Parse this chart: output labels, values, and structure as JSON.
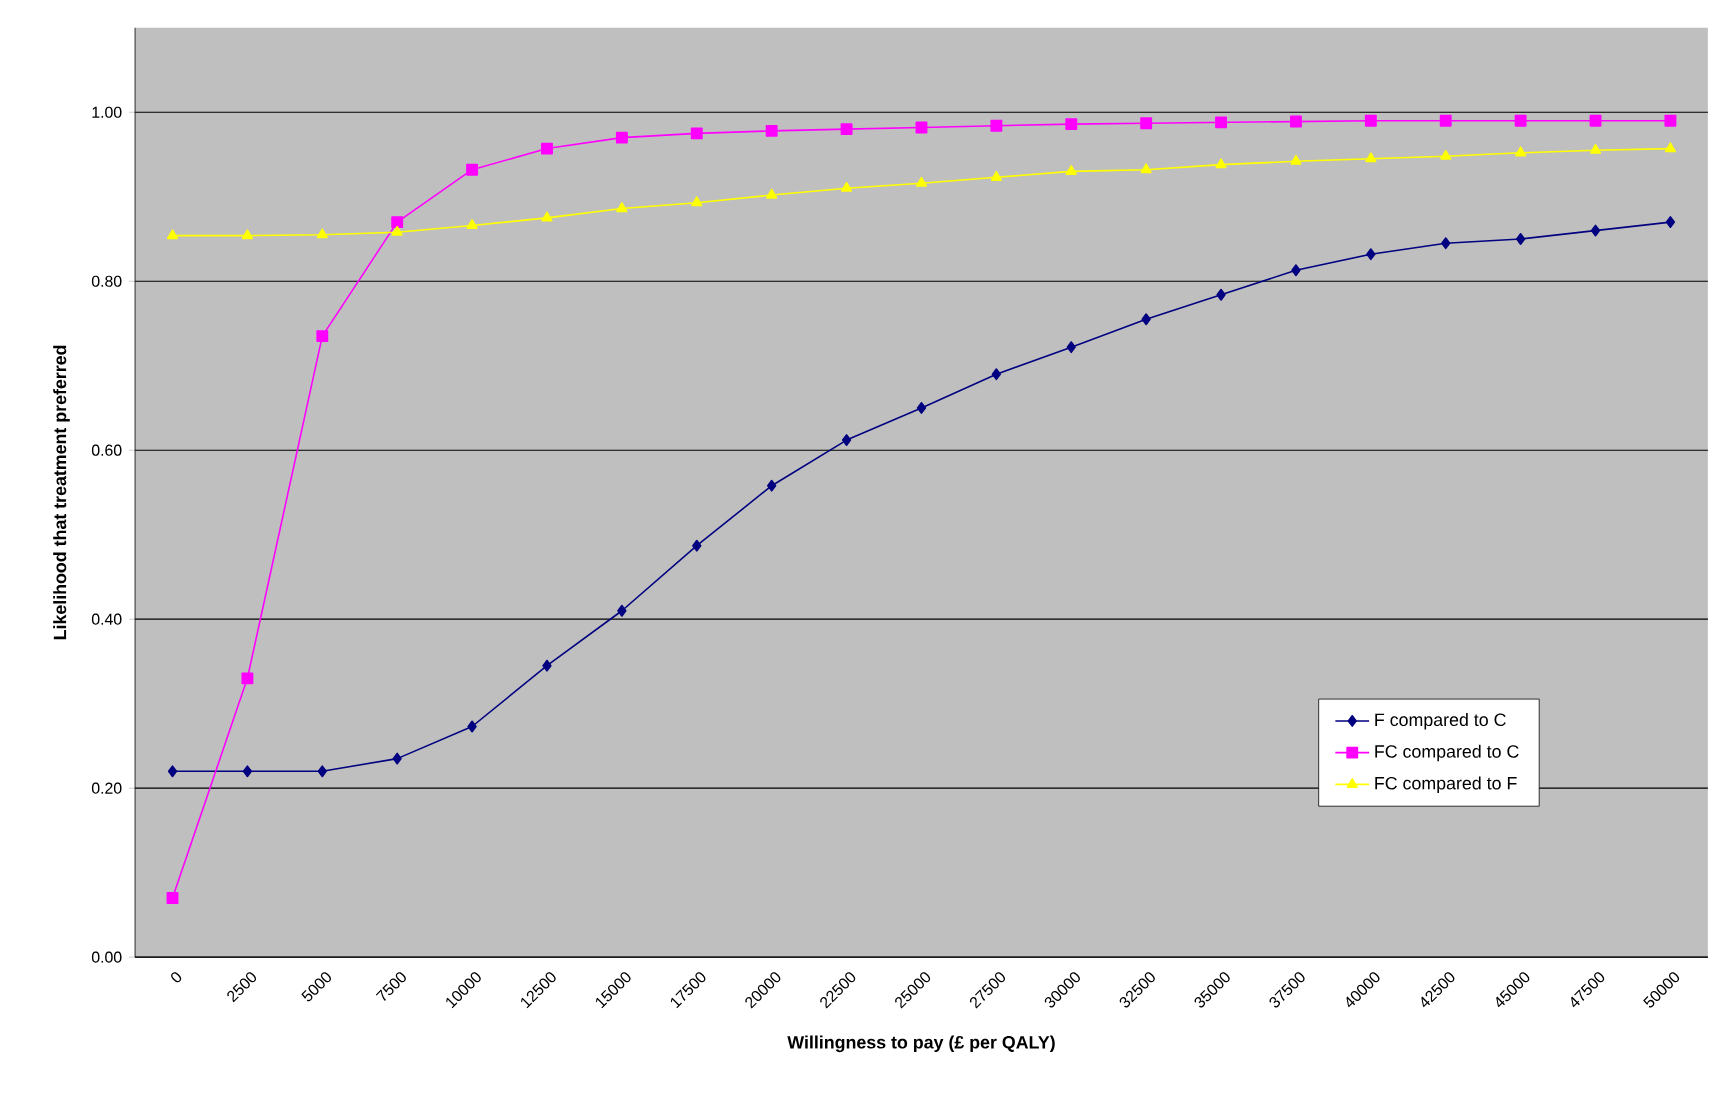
{
  "chart_data": {
    "type": "line",
    "xlabel": "Willingness to pay (£ per QALY)",
    "ylabel": "Likelihood that treatment preferred",
    "categories": [
      "0",
      "2500",
      "5000",
      "7500",
      "10000",
      "12500",
      "15000",
      "17500",
      "20000",
      "22500",
      "25000",
      "27500",
      "30000",
      "32500",
      "35000",
      "37500",
      "40000",
      "42500",
      "45000",
      "47500",
      "50000"
    ],
    "series": [
      {
        "name": "F compared to C",
        "color": "#000080",
        "marker": "diamond",
        "values": [
          0.22,
          0.22,
          0.22,
          0.235,
          0.273,
          0.345,
          0.41,
          0.487,
          0.558,
          0.612,
          0.65,
          0.69,
          0.722,
          0.755,
          0.784,
          0.813,
          0.832,
          0.845,
          0.85,
          0.86,
          0.87
        ]
      },
      {
        "name": "FC compared to C",
        "color": "#ff00ff",
        "marker": "square",
        "values": [
          0.07,
          0.33,
          0.735,
          0.87,
          0.932,
          0.957,
          0.97,
          0.975,
          0.978,
          0.98,
          0.982,
          0.984,
          0.986,
          0.987,
          0.988,
          0.989,
          0.99,
          0.99,
          0.99,
          0.99,
          0.99
        ]
      },
      {
        "name": "FC compared to F",
        "color": "#ffff00",
        "marker": "triangle",
        "values": [
          0.854,
          0.854,
          0.855,
          0.858,
          0.866,
          0.875,
          0.886,
          0.893,
          0.902,
          0.91,
          0.916,
          0.923,
          0.93,
          0.932,
          0.938,
          0.942,
          0.945,
          0.948,
          0.952,
          0.955,
          0.957
        ]
      }
    ],
    "ylim": [
      0,
      1.1
    ],
    "yticks": [
      {
        "value": 0,
        "label": "0.00"
      },
      {
        "value": 0.2,
        "label": "0.20"
      },
      {
        "value": 0.4,
        "label": "0.40"
      },
      {
        "value": 0.6,
        "label": "0.60"
      },
      {
        "value": 0.8,
        "label": "0.80"
      },
      {
        "value": 1.0,
        "label": "1.00"
      }
    ],
    "grid": "y",
    "legend": "bottom right",
    "line_style": "solid"
  }
}
